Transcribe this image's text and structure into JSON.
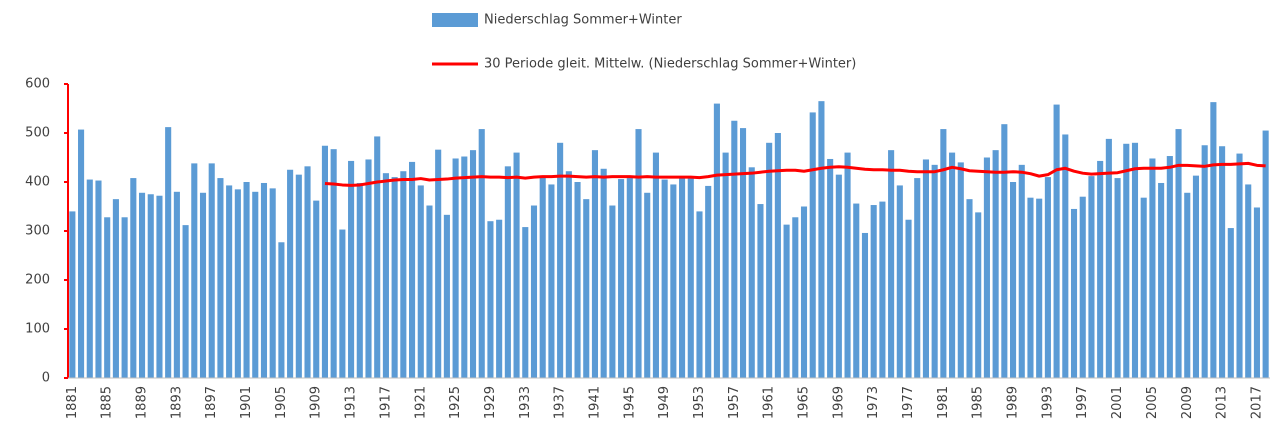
{
  "chart_data": {
    "type": "bar_line",
    "categories": [
      "1881",
      null,
      null,
      null,
      "1885",
      null,
      null,
      null,
      "1889",
      null,
      null,
      null,
      "1893",
      null,
      null,
      null,
      "1897",
      null,
      null,
      null,
      "1901",
      null,
      null,
      null,
      "1905",
      null,
      null,
      null,
      "1909",
      null,
      null,
      null,
      "1913",
      null,
      null,
      null,
      "1917",
      null,
      null,
      null,
      "1921",
      null,
      null,
      null,
      "1925",
      null,
      null,
      null,
      "1929",
      null,
      null,
      null,
      "1933",
      null,
      null,
      null,
      "1937",
      null,
      null,
      null,
      "1941",
      null,
      null,
      null,
      "1945",
      null,
      null,
      null,
      "1949",
      null,
      null,
      null,
      "1953",
      null,
      null,
      null,
      "1957",
      null,
      null,
      null,
      "1961",
      null,
      null,
      null,
      "1965",
      null,
      null,
      null,
      "1969",
      null,
      null,
      null,
      "1973",
      null,
      null,
      null,
      "1977",
      null,
      null,
      null,
      "1981",
      null,
      null,
      null,
      "1985",
      null,
      null,
      null,
      "1989",
      null,
      null,
      null,
      "1993",
      null,
      null,
      null,
      "1997",
      null,
      null,
      null,
      "2001",
      null,
      null,
      null,
      "2005",
      null,
      null,
      null,
      "2009",
      null,
      null,
      null,
      "2013",
      null,
      null,
      null,
      "2017",
      null
    ],
    "series": [
      {
        "name": "Niederschlag Sommer+Winter",
        "kind": "bar",
        "color": "#5b9bd5",
        "values": [
          340,
          507,
          405,
          403,
          328,
          365,
          328,
          408,
          378,
          375,
          372,
          512,
          380,
          312,
          438,
          378,
          438,
          408,
          393,
          385,
          400,
          380,
          398,
          387,
          277,
          425,
          415,
          432,
          362,
          474,
          467,
          303,
          443,
          398,
          446,
          493,
          418,
          410,
          422,
          441,
          393,
          352,
          466,
          333,
          448,
          452,
          465,
          508,
          320,
          323,
          432,
          460,
          308,
          352,
          410,
          395,
          480,
          422,
          400,
          365,
          465,
          427,
          352,
          406,
          408,
          508,
          378,
          460,
          405,
          395,
          410,
          410,
          340,
          392,
          560,
          460,
          525,
          510,
          430,
          355,
          480,
          500,
          313,
          328,
          350,
          542,
          565,
          447,
          415,
          460,
          356,
          296,
          353,
          360,
          465,
          393,
          323,
          408,
          446,
          435,
          508,
          460,
          440,
          365,
          338,
          450,
          465,
          518,
          400,
          435,
          368,
          366,
          410,
          558,
          497,
          345,
          370,
          412,
          443,
          488,
          408,
          478,
          480,
          368,
          448,
          398,
          453,
          508,
          378,
          413,
          475,
          563,
          473,
          306,
          458,
          395,
          348,
          505
        ]
      },
      {
        "name": "30 Periode gleit. Mittelw. (Niederschlag Sommer+Winter)",
        "kind": "line",
        "color": "#ff0000",
        "values": [
          null,
          null,
          null,
          null,
          null,
          null,
          null,
          null,
          null,
          null,
          null,
          null,
          null,
          null,
          null,
          null,
          null,
          null,
          null,
          null,
          null,
          null,
          null,
          null,
          null,
          null,
          null,
          null,
          null,
          397,
          396,
          394,
          393,
          394,
          397,
          400,
          402,
          404,
          405,
          405,
          407,
          404,
          405,
          406,
          408,
          409,
          410,
          411,
          410,
          410,
          409,
          410,
          408,
          410,
          411,
          411,
          412,
          412,
          411,
          410,
          411,
          410,
          411,
          411,
          411,
          410,
          411,
          410,
          410,
          410,
          410,
          410,
          409,
          411,
          414,
          415,
          416,
          417,
          418,
          420,
          422,
          423,
          424,
          424,
          422,
          425,
          428,
          430,
          431,
          430,
          428,
          426,
          425,
          425,
          424,
          424,
          422,
          421,
          421,
          421,
          425,
          430,
          427,
          423,
          422,
          421,
          420,
          420,
          421,
          420,
          417,
          412,
          415,
          425,
          428,
          422,
          418,
          416,
          417,
          418,
          419,
          423,
          427,
          428,
          428,
          428,
          430,
          434,
          434,
          433,
          432,
          435,
          436,
          436,
          437,
          438,
          434,
          433
        ]
      }
    ],
    "ylim": [
      0,
      600
    ],
    "yticks": [
      0,
      100,
      200,
      300,
      400,
      500,
      600
    ],
    "grid": false,
    "y_axis_color": "#ff0000",
    "legend": "top"
  }
}
